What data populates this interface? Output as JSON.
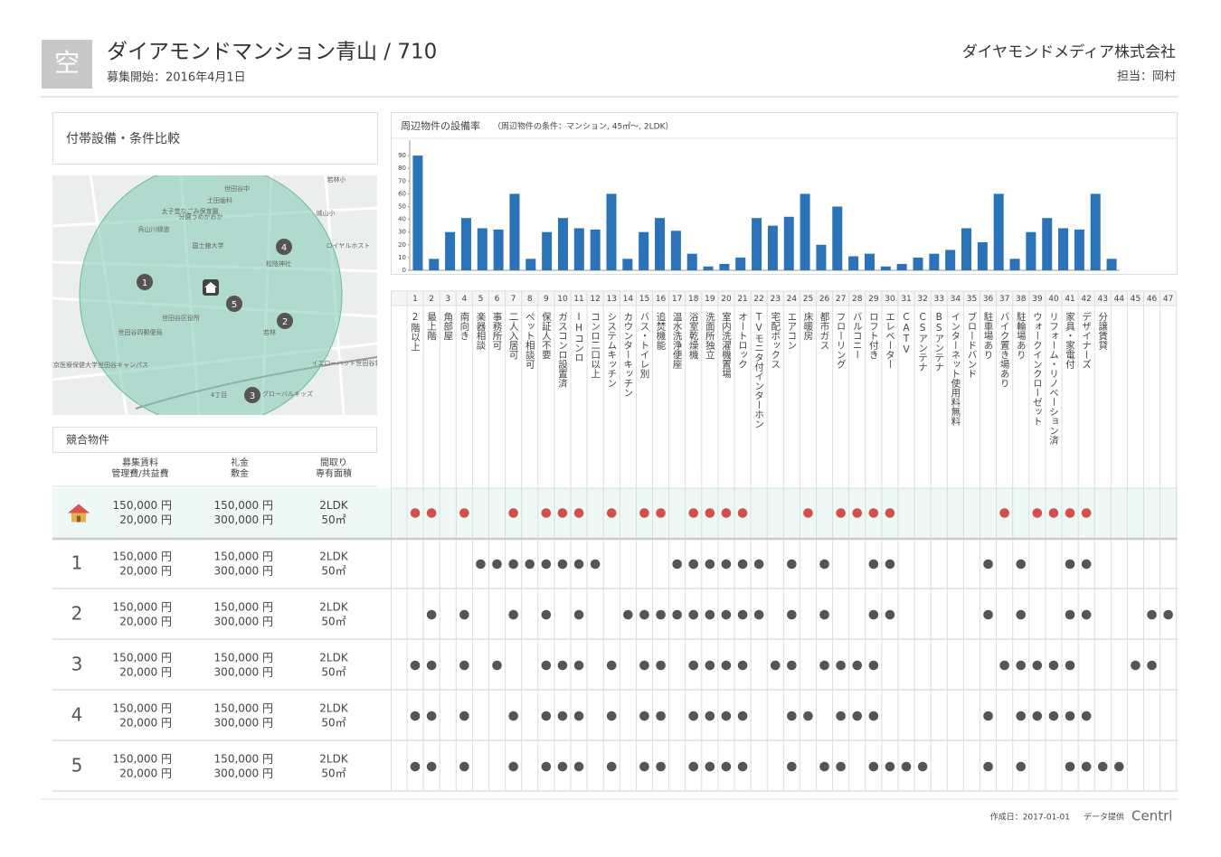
{
  "header": {
    "icon": "空",
    "title": "ダイアモンドマンション青山 / 710",
    "subtitle": "募集開始：2016年4月1日",
    "company": "ダイヤモンドメディア株式会社",
    "person": "担当：岡村"
  },
  "sections": {
    "facilities": "付帯設備・条件比較",
    "competitors": "競合物件"
  },
  "map": {
    "labels": [
      "若林小",
      "世田谷中",
      "土田歯科",
      "太子堂なごみ保育園",
      "分園うめがおか",
      "烏山川緑道",
      "国士舘大学",
      "城山小",
      "松陰神社",
      "世田谷区役所",
      "若林",
      "世田谷四郵便局",
      "東京医療保健大学世田谷キャンパス",
      "ロイヤルホスト",
      "イエローハット世田谷若林店",
      "グローバルキッズ",
      "4丁目"
    ],
    "markers": [
      1,
      2,
      3,
      4,
      5
    ]
  },
  "column_headers": [
    [
      "募集賃料",
      "管理費/共益費"
    ],
    [
      "礼金",
      "敷金"
    ],
    [
      "間取り",
      "専有面積"
    ]
  ],
  "chart_data": {
    "type": "bar",
    "title": "周辺物件の設備率",
    "subtitle": "（周辺物件の条件：マンション, 45㎡〜, 2LDK）",
    "values": [
      90,
      9,
      30,
      41,
      33,
      32,
      60,
      9,
      30,
      41,
      33,
      32,
      60,
      9,
      30,
      41,
      31,
      13,
      3,
      5,
      10,
      41,
      35,
      42,
      60,
      20,
      50,
      11,
      13,
      3,
      5,
      10,
      13,
      16,
      33,
      22,
      60,
      9,
      30,
      41,
      33,
      32,
      60,
      9
    ],
    "color": "#2a73b8",
    "ylim": [
      0,
      100
    ],
    "yticks": [
      0,
      10,
      20,
      30,
      40,
      50,
      60,
      70,
      80,
      90
    ]
  },
  "features": [
    {
      "no": 1,
      "name": "2階以上"
    },
    {
      "no": 2,
      "name": "最上階"
    },
    {
      "no": 3,
      "name": "角部屋"
    },
    {
      "no": 4,
      "name": "南向き"
    },
    {
      "no": 5,
      "name": "楽器相談"
    },
    {
      "no": 6,
      "name": "事務所可"
    },
    {
      "no": 7,
      "name": "二人入居可"
    },
    {
      "no": 8,
      "name": "ペット相談可"
    },
    {
      "no": 9,
      "name": "保証人不要"
    },
    {
      "no": 10,
      "name": "ガスコンロ設置済"
    },
    {
      "no": 11,
      "name": "IHコンロ"
    },
    {
      "no": 12,
      "name": "コンロ二口以上"
    },
    {
      "no": 13,
      "name": "システムキッチン"
    },
    {
      "no": 14,
      "name": "カウンターキッチン"
    },
    {
      "no": 15,
      "name": "バス・トイレ別"
    },
    {
      "no": 16,
      "name": "追焚機能"
    },
    {
      "no": 17,
      "name": "温水洗浄便座"
    },
    {
      "no": 18,
      "name": "浴室乾燥機"
    },
    {
      "no": 19,
      "name": "洗面所独立"
    },
    {
      "no": 20,
      "name": "室内洗濯機置場"
    },
    {
      "no": 21,
      "name": "オートロック"
    },
    {
      "no": 22,
      "name": "TVモニタ付インターホン"
    },
    {
      "no": 23,
      "name": "宅配ボックス"
    },
    {
      "no": 24,
      "name": "エアコン"
    },
    {
      "no": 25,
      "name": "床暖房"
    },
    {
      "no": 26,
      "name": "都市ガス"
    },
    {
      "no": 27,
      "name": "フローリング"
    },
    {
      "no": 28,
      "name": "バルコニー"
    },
    {
      "no": 29,
      "name": "ロフト付き"
    },
    {
      "no": 30,
      "name": "エレベーター"
    },
    {
      "no": 31,
      "name": "CATV"
    },
    {
      "no": 32,
      "name": "CSアンテナ"
    },
    {
      "no": 33,
      "name": "BSアンテナ"
    },
    {
      "no": 34,
      "name": "インターネット使用料無料"
    },
    {
      "no": 35,
      "name": "ブロードバンド"
    },
    {
      "no": 36,
      "name": "駐車場あり"
    },
    {
      "no": 37,
      "name": "バイク置き場あり"
    },
    {
      "no": 38,
      "name": "駐輪場あり"
    },
    {
      "no": 39,
      "name": "ウォークインクローゼット"
    },
    {
      "no": 40,
      "name": "リフォーム・リノベーション済"
    },
    {
      "no": 41,
      "name": "家具・家電付"
    },
    {
      "no": 42,
      "name": "デザイナーズ"
    },
    {
      "no": 43,
      "name": "分譲賃貸"
    },
    {
      "no": 44,
      "name": null
    },
    {
      "no": 45,
      "name": null
    },
    {
      "no": 46,
      "name": null
    },
    {
      "no": 47,
      "name": null
    }
  ],
  "rows": [
    {
      "rent": "150,000 円",
      "fee": "20,000 円",
      "key_money": "150,000 円",
      "deposit": "300,000 円",
      "layout": "2LDK",
      "area": "50㎡",
      "features": [
        1,
        2,
        4,
        7,
        9,
        10,
        11,
        13,
        15,
        16,
        18,
        19,
        20,
        21,
        25,
        27,
        28,
        29,
        30,
        37,
        39,
        40,
        41,
        42
      ]
    },
    {
      "no": 1,
      "rent": "150,000 円",
      "fee": "20,000 円",
      "key_money": "150,000 円",
      "deposit": "300,000 円",
      "layout": "2LDK",
      "area": "50㎡",
      "features": [
        5,
        6,
        7,
        8,
        9,
        10,
        11,
        12,
        17,
        18,
        19,
        20,
        21,
        22,
        24,
        26,
        29,
        30,
        36,
        38,
        41,
        42
      ]
    },
    {
      "no": 2,
      "rent": "150,000 円",
      "fee": "20,000 円",
      "key_money": "150,000 円",
      "deposit": "300,000 円",
      "layout": "2LDK",
      "area": "50㎡",
      "features": [
        2,
        4,
        7,
        9,
        11,
        14,
        15,
        16,
        17,
        18,
        19,
        20,
        21,
        22,
        24,
        26,
        29,
        30,
        36,
        38,
        41,
        42,
        46,
        47
      ]
    },
    {
      "no": 3,
      "rent": "150,000 円",
      "fee": "20,000 円",
      "key_money": "150,000 円",
      "deposit": "300,000 円",
      "layout": "2LDK",
      "area": "50㎡",
      "features": [
        1,
        2,
        4,
        6,
        9,
        10,
        11,
        13,
        15,
        16,
        18,
        19,
        20,
        21,
        23,
        24,
        26,
        27,
        28,
        29,
        37,
        38,
        39,
        40,
        41,
        45,
        46
      ]
    },
    {
      "no": 4,
      "rent": "150,000 円",
      "fee": "20,000 円",
      "key_money": "150,000 円",
      "deposit": "300,000 円",
      "layout": "2LDK",
      "area": "50㎡",
      "features": [
        1,
        2,
        4,
        7,
        9,
        10,
        11,
        13,
        15,
        16,
        18,
        19,
        20,
        21,
        24,
        25,
        27,
        28,
        29,
        36,
        38,
        39,
        40,
        41,
        42
      ]
    },
    {
      "no": 5,
      "rent": "150,000 円",
      "fee": "20,000 円",
      "key_money": "150,000 円",
      "deposit": "300,000 円",
      "layout": "2LDK",
      "area": "50㎡",
      "features": [
        1,
        2,
        4,
        7,
        9,
        10,
        11,
        13,
        15,
        16,
        18,
        19,
        20,
        21,
        24,
        26,
        27,
        29,
        30,
        31,
        32,
        36,
        38,
        41,
        42,
        43,
        44
      ]
    }
  ],
  "footer": {
    "created": "作成日：2017-01-01",
    "provider": "データ提供",
    "brand": "Centrl"
  }
}
